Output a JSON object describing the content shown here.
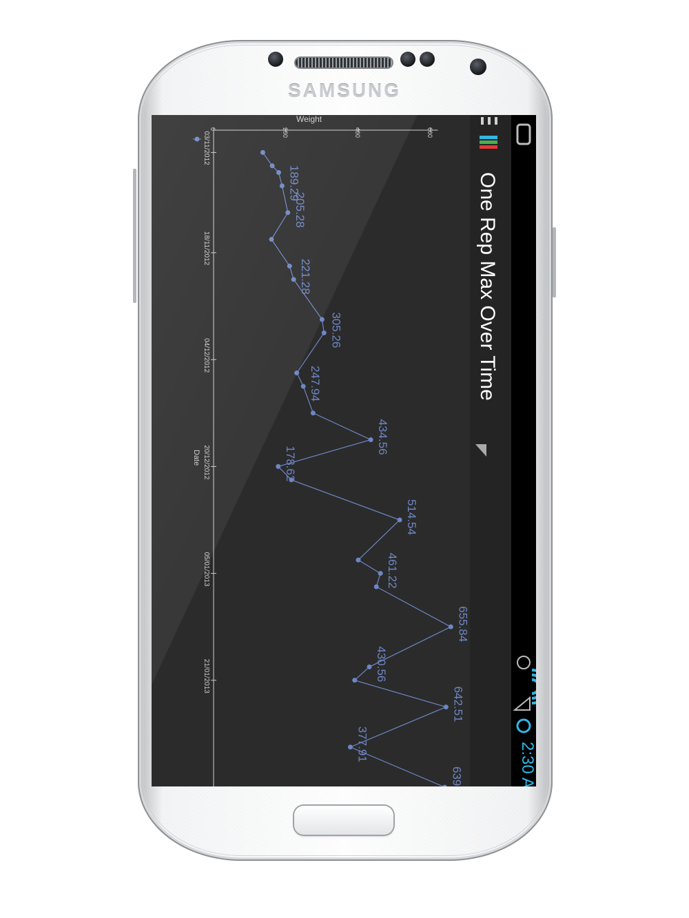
{
  "device": {
    "brand": "SAMSUNG"
  },
  "status_bar": {
    "time": "2:30 A",
    "status_color": "#33b5e5"
  },
  "action_bar": {
    "title": "One Rep Max Over Time",
    "app_icon": "bar-chart-icon"
  },
  "colors": {
    "series": "#6d86c4",
    "chart_bg": "#2b2b2b",
    "axis": "#d0d0d0"
  },
  "chart_data": {
    "type": "line",
    "xlabel": "Date",
    "ylabel": "Weight",
    "x_ticks": [
      "03/11/2012",
      "18/11/2012",
      "04/12/2012",
      "20/12/2012",
      "05/01/2013",
      "21/01/2013"
    ],
    "y_ticks": [
      "0",
      "200",
      "400",
      "600"
    ],
    "ylim": [
      0,
      620
    ],
    "series": [
      {
        "x": [
          "2012-11-01",
          "2012-11-03",
          "2012-11-05",
          "2012-11-06",
          "2012-11-08",
          "2012-11-10",
          "2012-11-12",
          "2012-11-14",
          "2012-11-16",
          "2012-11-18",
          "2012-11-20",
          "2012-11-22",
          "2012-11-24",
          "2012-11-26",
          "2012-11-28",
          "2012-11-30",
          "2012-12-02",
          "2012-12-04",
          "2012-12-06",
          "2012-12-08",
          "2012-12-10",
          "2012-12-12",
          "2012-12-14",
          "2012-12-16",
          "2012-12-18",
          "2012-12-20",
          "2012-12-22",
          "2012-12-24",
          "2012-12-26",
          "2012-12-28",
          "2012-12-30",
          "2013-01-01",
          "2013-01-03",
          "2013-01-05",
          "2013-01-07",
          "2013-01-09",
          "2013-01-11",
          "2013-01-13",
          "2013-01-15",
          "2013-01-17",
          "2013-01-19",
          "2013-01-21",
          "2013-01-23",
          "2013-01-25",
          "2013-01-27",
          "2013-01-29",
          "2013-01-31",
          "2013-02-02",
          "2013-02-04",
          "2013-02-06"
        ],
        "values": [
          null,
          136,
          162,
          180,
          189.29,
          null,
          205.28,
          null,
          160,
          null,
          210,
          221.28,
          null,
          null,
          300,
          305.26,
          null,
          null,
          230,
          247.94,
          null,
          275,
          null,
          434.56,
          null,
          178.62,
          215,
          null,
          null,
          514.54,
          null,
          null,
          400,
          461.22,
          450,
          null,
          null,
          655.84,
          null,
          null,
          430.56,
          390,
          null,
          642.51,
          null,
          null,
          377.91,
          null,
          null,
          639
        ],
        "labels": [
          "",
          "",
          "",
          "",
          "189.29",
          "",
          "205.28",
          "",
          "",
          "",
          "",
          "221.28",
          "",
          "",
          "",
          "305.26",
          "",
          "",
          "",
          "247.94",
          "",
          "",
          "",
          "434.56",
          "",
          "178.62",
          "",
          "",
          "",
          "514.54",
          "",
          "",
          "",
          "461.22",
          "",
          "",
          "",
          "655.84",
          "",
          "",
          "430.56",
          "",
          "",
          "642.51",
          "",
          "",
          "377.91",
          "",
          "",
          "639"
        ]
      }
    ]
  }
}
